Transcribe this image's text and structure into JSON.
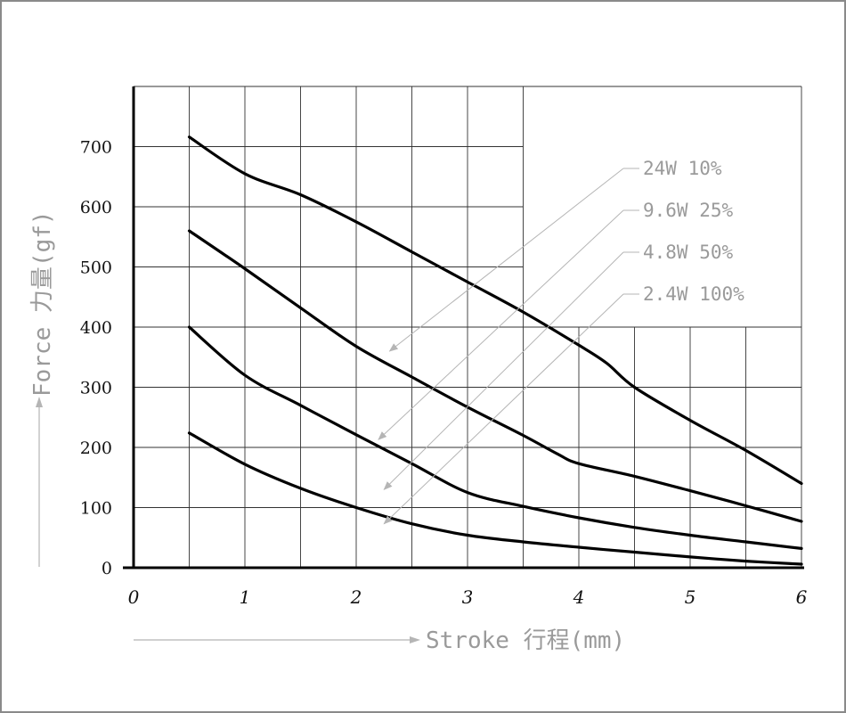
{
  "chart_data": {
    "type": "line",
    "xlabel": "Stroke 行程(mm)",
    "ylabel": "Force 力量(gf)",
    "xlim": [
      0,
      6
    ],
    "ylim": [
      0,
      800
    ],
    "x_ticks": [
      "0",
      "1",
      "2",
      "3",
      "4",
      "5",
      "6"
    ],
    "y_ticks": [
      "0",
      "100",
      "200",
      "300",
      "400",
      "500",
      "600",
      "700"
    ],
    "grid": true,
    "series": [
      {
        "name": "24W 10%",
        "x": [
          0.5,
          1,
          1.5,
          2,
          2.5,
          3,
          3.5,
          4,
          4.25,
          4.5,
          5,
          5.5,
          6
        ],
        "y": [
          716,
          655,
          620,
          575,
          525,
          475,
          425,
          370,
          340,
          300,
          245,
          195,
          140
        ]
      },
      {
        "name": "9.6W 25%",
        "x": [
          0.5,
          1,
          1.5,
          2,
          2.5,
          3,
          3.5,
          3.8,
          4,
          4.5,
          5,
          5.5,
          6
        ],
        "y": [
          560,
          497,
          432,
          368,
          317,
          267,
          220,
          190,
          173,
          152,
          128,
          103,
          77
        ]
      },
      {
        "name": "4.8W 50%",
        "x": [
          0.5,
          1,
          1.5,
          2,
          2.5,
          3,
          3.5,
          4,
          4.5,
          5,
          5.5,
          6
        ],
        "y": [
          400,
          320,
          270,
          221,
          173,
          125,
          102,
          83,
          67,
          54,
          43,
          32
        ]
      },
      {
        "name": "2.4W 100%",
        "x": [
          0.5,
          1,
          1.5,
          2,
          2.5,
          3,
          3.5,
          4,
          4.5,
          5,
          5.5,
          6
        ],
        "y": [
          224,
          172,
          132,
          100,
          73,
          54,
          43,
          34,
          26,
          18,
          11,
          6
        ]
      }
    ],
    "legend_arrow_targets": [
      {
        "x": 2.3,
        "y": 360
      },
      {
        "x": 2.2,
        "y": 213
      },
      {
        "x": 2.25,
        "y": 130
      },
      {
        "x": 2.25,
        "y": 73
      }
    ]
  }
}
